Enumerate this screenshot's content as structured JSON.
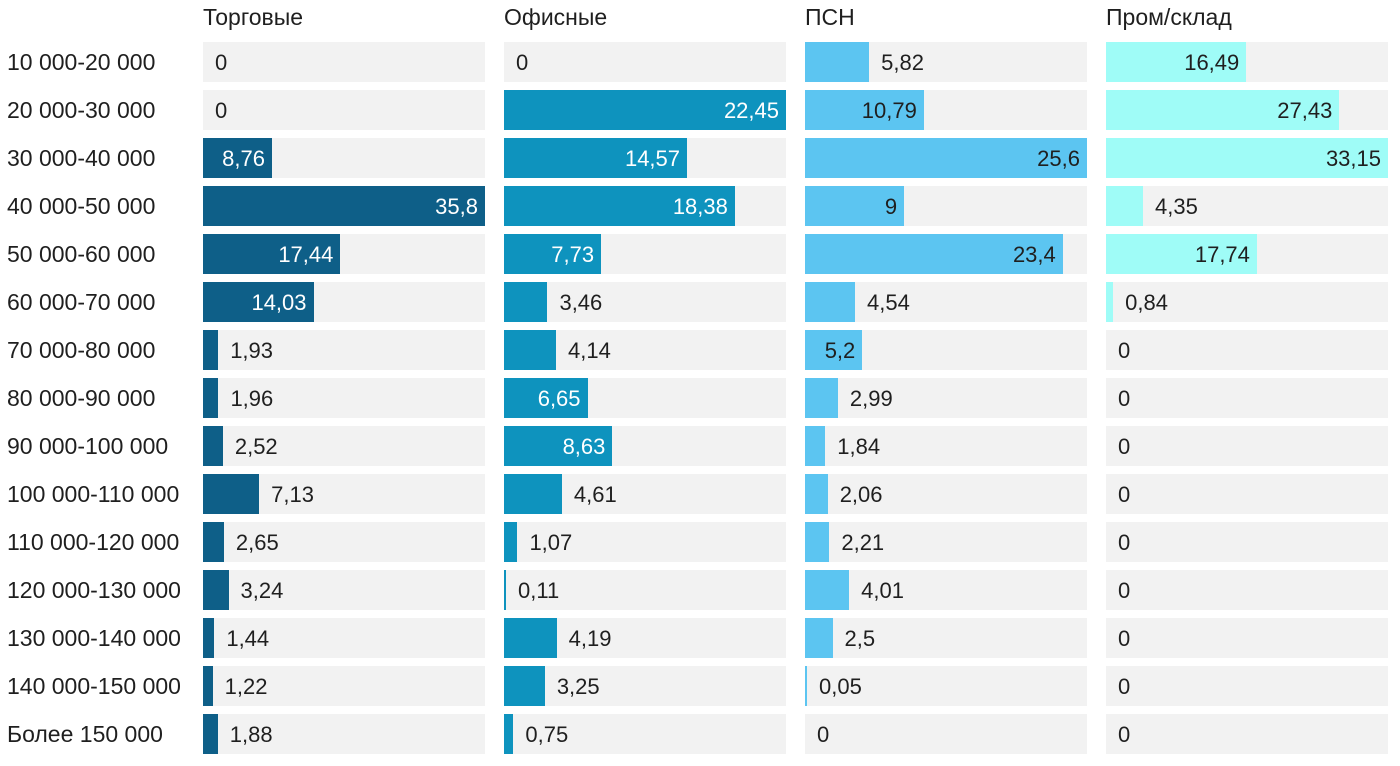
{
  "chart_data": {
    "type": "bar",
    "orientation": "horizontal",
    "scale": "each column normalized to its own maximum value",
    "legend_position": "column headers on top",
    "grid": false,
    "categories": [
      "10 000-20 000",
      "20 000-30 000",
      "30 000-40 000",
      "40 000-50 000",
      "50 000-60 000",
      "60 000-70 000",
      "70 000-80 000",
      "80 000-90 000",
      "90 000-100 000",
      "100 000-110 000",
      "110 000-120 000",
      "120 000-130 000",
      "130 000-140 000",
      "140 000-150 000",
      "Более 150 000"
    ],
    "series": [
      {
        "name": "Торговые",
        "color": "#0e5f88",
        "inside_label_color": "#ffffff",
        "values": [
          0,
          0,
          8.76,
          35.8,
          17.44,
          14.03,
          1.93,
          1.96,
          2.52,
          7.13,
          2.65,
          3.24,
          1.44,
          1.22,
          1.88
        ],
        "labels": [
          "0",
          "0",
          "8,76",
          "35,8",
          "17,44",
          "14,03",
          "1,93",
          "1,96",
          "2,52",
          "7,13",
          "2,65",
          "3,24",
          "1,44",
          "1,22",
          "1,88"
        ]
      },
      {
        "name": "Офисные",
        "color": "#0e93be",
        "inside_label_color": "#ffffff",
        "values": [
          0,
          22.45,
          14.57,
          18.38,
          7.73,
          3.46,
          4.14,
          6.65,
          8.63,
          4.61,
          1.07,
          0.11,
          4.19,
          3.25,
          0.75
        ],
        "labels": [
          "0",
          "22,45",
          "14,57",
          "18,38",
          "7,73",
          "3,46",
          "4,14",
          "6,65",
          "8,63",
          "4,61",
          "1,07",
          "0,11",
          "4,19",
          "3,25",
          "0,75"
        ]
      },
      {
        "name": "ПСН",
        "color": "#5cc5f1",
        "inside_label_color": "#1f1f1f",
        "values": [
          5.82,
          10.79,
          25.6,
          9,
          23.4,
          4.54,
          5.2,
          2.99,
          1.84,
          2.06,
          2.21,
          4.01,
          2.5,
          0.05,
          0
        ],
        "labels": [
          "5,82",
          "10,79",
          "25,6",
          "9",
          "23,4",
          "4,54",
          "5,2",
          "2,99",
          "1,84",
          "2,06",
          "2,21",
          "4,01",
          "2,5",
          "0,05",
          "0"
        ]
      },
      {
        "name": "Пром/склад",
        "color": "#9ffcf7",
        "inside_label_color": "#1f1f1f",
        "values": [
          16.49,
          27.43,
          33.15,
          4.35,
          17.74,
          0.84,
          0,
          0,
          0,
          0,
          0,
          0,
          0,
          0,
          0
        ],
        "labels": [
          "16,49",
          "27,43",
          "33,15",
          "4,35",
          "17,74",
          "0,84",
          "0",
          "0",
          "0",
          "0",
          "0",
          "0",
          "0",
          "0",
          "0"
        ]
      }
    ],
    "colors": {
      "track": "#f2f2f2",
      "text": "#1f1f1f",
      "background": "#ffffff"
    }
  }
}
